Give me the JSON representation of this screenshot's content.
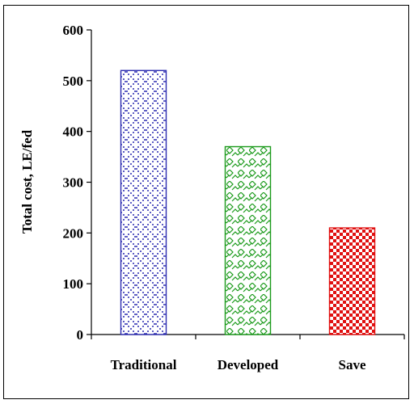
{
  "chart_data": {
    "type": "bar",
    "title": "",
    "xlabel": "",
    "ylabel": "Total cost, LE/fed",
    "categories": [
      "Traditional",
      "Developed",
      "Save"
    ],
    "values": [
      520,
      370,
      210
    ],
    "ylim": [
      0,
      600
    ],
    "yticks": [
      0,
      100,
      200,
      300,
      400,
      500,
      600
    ],
    "ytick_labels": [
      "0",
      "100",
      "200",
      "300",
      "400",
      "500",
      "600"
    ],
    "grid": false,
    "legend": "none",
    "bar_styles": [
      {
        "pattern": "dotted-diamond",
        "color": "#2b2bb0",
        "border": "#2b2bb0"
      },
      {
        "pattern": "wave-lattice",
        "color": "#1a9a1a",
        "border": "#1a9a1a"
      },
      {
        "pattern": "checkerboard",
        "color": "#e01010",
        "border": "#e01010"
      }
    ]
  }
}
